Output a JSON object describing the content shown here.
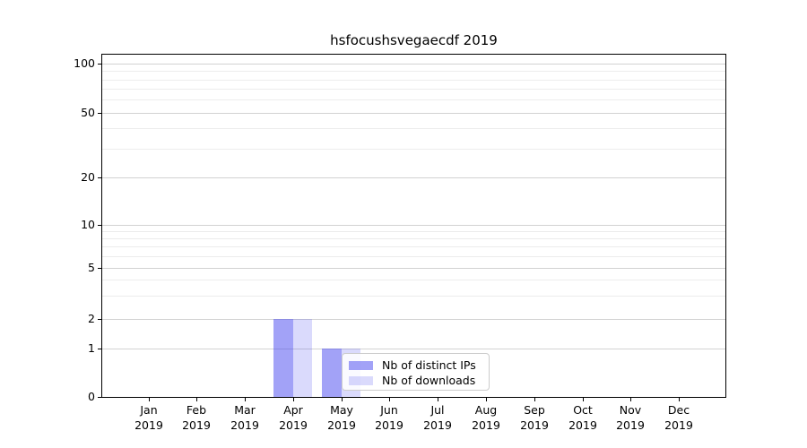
{
  "title": "hsfocushsvegaecdf 2019",
  "chart_data": {
    "type": "bar",
    "title": "hsfocushsvegaecdf 2019",
    "categories": [
      "Jan 2019",
      "Feb 2019",
      "Mar 2019",
      "Apr 2019",
      "May 2019",
      "Jun 2019",
      "Jul 2019",
      "Aug 2019",
      "Sep 2019",
      "Oct 2019",
      "Nov 2019",
      "Dec 2019"
    ],
    "x_tick_line1": [
      "Jan",
      "Feb",
      "Mar",
      "Apr",
      "May",
      "Jun",
      "Jul",
      "Aug",
      "Sep",
      "Oct",
      "Nov",
      "Dec"
    ],
    "x_tick_line2": "2019",
    "series": [
      {
        "name": "Nb of distinct IPs",
        "color": "rgba(70,70,240,0.5)",
        "values": [
          0,
          0,
          0,
          2,
          1,
          0,
          0,
          0,
          0,
          0,
          0,
          0
        ]
      },
      {
        "name": "Nb of downloads",
        "color": "rgba(70,70,240,0.2)",
        "values": [
          0,
          0,
          0,
          2,
          1,
          0,
          0,
          0,
          0,
          0,
          0,
          0
        ]
      }
    ],
    "xlabel": "",
    "ylabel": "",
    "yscale": "symlog",
    "ylim": [
      0,
      113
    ],
    "y_major_ticks": [
      0,
      1,
      2,
      5,
      10,
      20,
      50,
      100
    ],
    "y_minor_ticks": [
      3,
      4,
      6,
      7,
      8,
      9,
      30,
      40,
      60,
      70,
      80,
      90
    ],
    "grid": "both",
    "legend_position": "inside-lower-center",
    "colors": {
      "distinct_ips_bar": "rgba(70,70,240,0.5)",
      "downloads_bar": "rgba(70,70,240,0.2)",
      "major_grid": "#d2d2d2",
      "minor_grid": "#ececec",
      "spine": "#000000",
      "legend_border": "#cccccc"
    }
  },
  "legend": {
    "items": [
      {
        "label": "Nb of distinct IPs"
      },
      {
        "label": "Nb of downloads"
      }
    ]
  }
}
